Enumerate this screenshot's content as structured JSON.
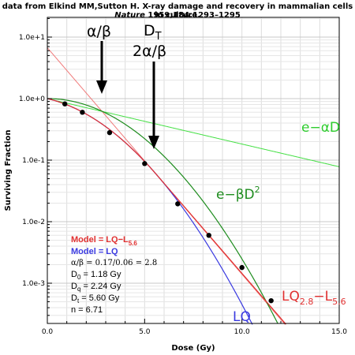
{
  "header": {
    "line1": "data from Elkind MM,Sutton H. X-ray damage and recovery in mammalian cells in culture.",
    "journal": "Nature",
    "citation": " 1959;184:1293–1295"
  },
  "chart_data": {
    "type": "scatter",
    "xlabel": "Dose (Gy)",
    "ylabel": "Surviving Fraction",
    "xlim": [
      0,
      15
    ],
    "ylim": [
      0.0001,
      10
    ],
    "yscale": "log",
    "grid": true,
    "x_ticks": [
      {
        "value": 0,
        "label": "0.0"
      },
      {
        "value": 5,
        "label": "5.0"
      },
      {
        "value": 10,
        "label": "10.0"
      },
      {
        "value": 15,
        "label": "15.0"
      }
    ],
    "y_ticks": [
      {
        "value": 10,
        "label": "1.0e+1"
      },
      {
        "value": 1,
        "label": "1.0e+0"
      },
      {
        "value": 0.1,
        "label": "1.0e-1"
      },
      {
        "value": 0.01,
        "label": "1.0e-2"
      },
      {
        "value": 0.001,
        "label": "1.0e-3"
      }
    ],
    "points": [
      {
        "x": 0.9,
        "y": 0.82
      },
      {
        "x": 1.8,
        "y": 0.6
      },
      {
        "x": 3.2,
        "y": 0.28
      },
      {
        "x": 5.0,
        "y": 0.088
      },
      {
        "x": 6.7,
        "y": 0.0195
      },
      {
        "x": 8.3,
        "y": 0.006
      },
      {
        "x": 10.0,
        "y": 0.0018
      },
      {
        "x": 11.5,
        "y": 0.00052
      }
    ],
    "curves": {
      "lq_l": {
        "color": "#e03030",
        "alpha": 0.17,
        "beta": 0.06,
        "dt": 5.6
      },
      "lq": {
        "color": "#3a3ae0",
        "alpha": 0.17,
        "beta": 0.06
      },
      "alpha_line": {
        "color": "#44e044",
        "alpha": 0.17
      },
      "beta_line": {
        "color": "#1e8c1e",
        "beta": 0.06
      },
      "d0_line": {
        "color": "#f07a7a",
        "d0": 1.18,
        "n": 6.71
      }
    },
    "labels": {
      "alpha_over_beta": "α/β",
      "dt_main": "D",
      "dt_sub": "T",
      "two_alpha_beta": "2α/β",
      "e_alpha": "e−αD",
      "e_beta": "e−βD",
      "e_beta_sup": "2",
      "lq_label": "LQ",
      "lql_main": "LQ",
      "lql_sub1": "2.8",
      "lql_mid": "−L",
      "lql_sub2": "5.6"
    },
    "legend": {
      "model1_main": "Model = LQ−L",
      "model1_sub": "5.6",
      "model2": "Model = LQ",
      "ab_ratio": "α/β = 0.17/0.06 = 2.8",
      "d0_main": "D",
      "d0_sub": "0",
      "d0_val": " = 1.18 Gy",
      "dq_main": "D",
      "dq_sub": "q",
      "dq_val": " = 2.24 Gy",
      "dt_main": "D",
      "dt_sub": "t",
      "dt_val": " = 5.60 Gy",
      "n_val": "n = 6.71"
    }
  }
}
